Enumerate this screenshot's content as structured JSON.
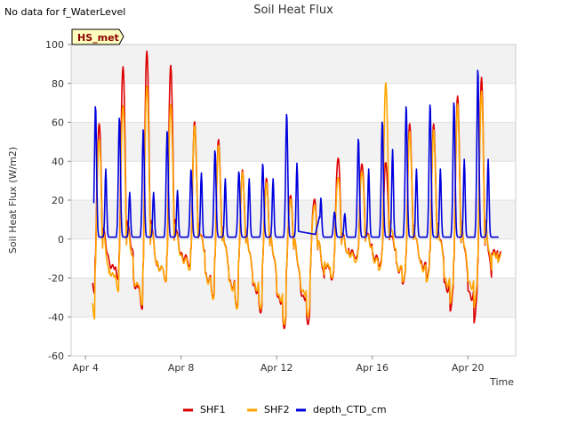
{
  "notice": "No data for f_WaterLevel",
  "badge": "HS_met",
  "chart_data": {
    "type": "line",
    "title": "Soil Heat Flux",
    "xlabel": "Time",
    "ylabel": "Soil Heat Flux (W/m2)",
    "xlim": [
      3.4,
      22.0
    ],
    "ylim": [
      -60,
      100
    ],
    "yticks": [
      -60,
      -40,
      -20,
      0,
      20,
      40,
      60,
      80,
      100
    ],
    "xticks": [
      {
        "value": 4,
        "label": "Apr 4"
      },
      {
        "value": 8,
        "label": "Apr 8"
      },
      {
        "value": 12,
        "label": "Apr 12"
      },
      {
        "value": 16,
        "label": "Apr 16"
      },
      {
        "value": 20,
        "label": "Apr 20"
      }
    ],
    "series": [
      {
        "name": "SHF1",
        "color": "#dd0000",
        "daily": [
          {
            "peak": 60,
            "trough": -28
          },
          {
            "peak": 90,
            "trough": -21
          },
          {
            "peak": 98,
            "trough": -36
          },
          {
            "peak": 90,
            "trough": -22
          },
          {
            "peak": 60,
            "trough": -14
          },
          {
            "peak": 50,
            "trough": -30
          },
          {
            "peak": 34,
            "trough": -35
          },
          {
            "peak": 30,
            "trough": -38
          },
          {
            "peak": 22,
            "trough": -46
          },
          {
            "peak": 21,
            "trough": -44
          },
          {
            "peak": 43,
            "trough": -21
          },
          {
            "peak": 40,
            "trough": -10
          },
          {
            "peak": 40,
            "trough": -14
          },
          {
            "peak": 59,
            "trough": -23
          },
          {
            "peak": 58,
            "trough": -20
          },
          {
            "peak": 72,
            "trough": -37
          },
          {
            "peak": 82,
            "trough": -43
          },
          {
            "peak": 67,
            "trough": -10
          },
          {
            "peak": 52,
            "trough": -26
          }
        ]
      },
      {
        "name": "SHF2",
        "color": "#ffa500",
        "daily": [
          {
            "peak": 52,
            "trough": -41
          },
          {
            "peak": 70,
            "trough": -27
          },
          {
            "peak": 80,
            "trough": -34
          },
          {
            "peak": 70,
            "trough": -22
          },
          {
            "peak": 58,
            "trough": -16
          },
          {
            "peak": 47,
            "trough": -31
          },
          {
            "peak": 33,
            "trough": -36
          },
          {
            "peak": 28,
            "trough": -36
          },
          {
            "peak": 20,
            "trough": -44
          },
          {
            "peak": 18,
            "trough": -40
          },
          {
            "peak": 33,
            "trough": -20
          },
          {
            "peak": 36,
            "trough": -12
          },
          {
            "peak": 81,
            "trough": -16
          },
          {
            "peak": 55,
            "trough": -22
          },
          {
            "peak": 55,
            "trough": -22
          },
          {
            "peak": 68,
            "trough": -33
          },
          {
            "peak": 75,
            "trough": -35
          },
          {
            "peak": 60,
            "trough": -12
          },
          {
            "peak": 50,
            "trough": -26
          }
        ]
      },
      {
        "name": "depth_CTD_cm",
        "color": "#0000dd",
        "x_start": 4.35,
        "x_end": 21.3,
        "gap": [
          12.9,
          13.8
        ],
        "day_peaks": [
          68,
          62,
          56,
          55,
          35,
          45,
          34,
          38,
          64,
          39,
          13,
          51,
          60,
          68,
          69,
          70,
          87,
          85
        ],
        "secondary_peaks": [
          35,
          23,
          23,
          24,
          33,
          30,
          30,
          30,
          38,
          20,
          12,
          35,
          45,
          35,
          35,
          40,
          40,
          55
        ]
      }
    ],
    "legend": {
      "position": "bottom",
      "entries": [
        "SHF1",
        "SHF2",
        "depth_CTD_cm"
      ]
    }
  }
}
